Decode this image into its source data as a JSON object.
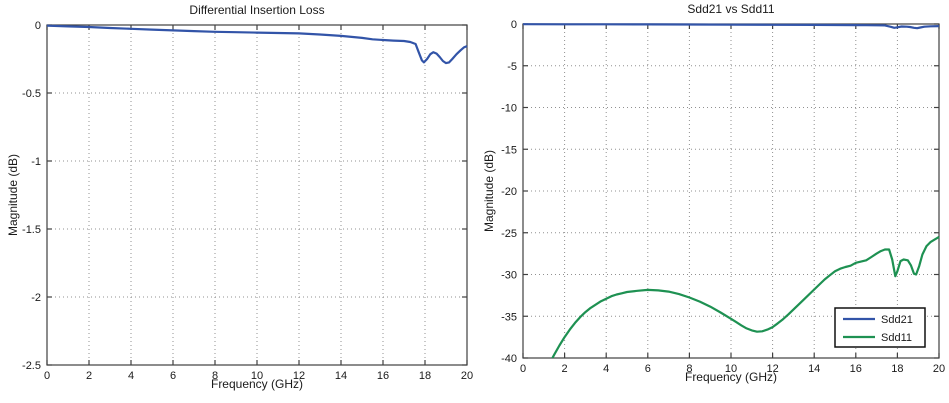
{
  "figure": {
    "background": "#ffffff",
    "axis_color": "#404040",
    "grid_color": "#909090",
    "text_color": "#1a1a1a"
  },
  "chart_data": [
    {
      "type": "line",
      "title": "Differential Insertion Loss",
      "xlabel": "Frequency (GHz)",
      "ylabel": "Magnitude (dB)",
      "xlim": [
        0,
        20
      ],
      "ylim": [
        -2.5,
        0
      ],
      "xticks": [
        0,
        2,
        4,
        6,
        8,
        10,
        12,
        14,
        16,
        18,
        20
      ],
      "yticks": [
        0,
        -0.5,
        -1,
        -1.5,
        -2,
        -2.5
      ],
      "grid": true,
      "legend": null,
      "series": [
        {
          "name": "Differential Insertion Loss",
          "color": "#3254a8",
          "x": [
            0,
            1,
            2,
            3,
            4,
            5,
            6,
            7,
            8,
            9,
            10,
            11,
            12,
            13,
            14,
            15,
            15.5,
            16,
            16.5,
            17,
            17.3,
            17.55,
            17.7,
            17.85,
            17.95,
            18.1,
            18.25,
            18.4,
            18.55,
            18.7,
            18.85,
            19.0,
            19.15,
            19.3,
            19.5,
            19.7,
            19.85,
            20
          ],
          "y": [
            -0.005,
            -0.01,
            -0.015,
            -0.022,
            -0.028,
            -0.034,
            -0.04,
            -0.045,
            -0.05,
            -0.053,
            -0.056,
            -0.059,
            -0.062,
            -0.07,
            -0.08,
            -0.095,
            -0.105,
            -0.11,
            -0.115,
            -0.118,
            -0.125,
            -0.14,
            -0.2,
            -0.26,
            -0.275,
            -0.25,
            -0.215,
            -0.2,
            -0.21,
            -0.235,
            -0.265,
            -0.28,
            -0.275,
            -0.25,
            -0.215,
            -0.185,
            -0.165,
            -0.155
          ]
        }
      ]
    },
    {
      "type": "line",
      "title": "Sdd21 vs Sdd11",
      "xlabel": "Frequency (GHz)",
      "ylabel": "Magnitude (dB)",
      "xlim": [
        0,
        20
      ],
      "ylim": [
        -40,
        0
      ],
      "xticks": [
        0,
        2,
        4,
        6,
        8,
        10,
        12,
        14,
        16,
        18,
        20
      ],
      "yticks": [
        0,
        -5,
        -10,
        -15,
        -20,
        -25,
        -30,
        -35,
        -40
      ],
      "grid": true,
      "legend": {
        "position": "lower-right-inside",
        "entries": [
          "Sdd21",
          "Sdd11"
        ]
      },
      "series": [
        {
          "name": "Sdd21",
          "color": "#3254a8",
          "x": [
            0,
            2,
            4,
            6,
            8,
            10,
            12,
            14,
            15,
            16,
            16.5,
            17,
            17.4,
            17.7,
            17.85,
            18,
            18.2,
            18.45,
            18.6,
            18.8,
            18.95,
            19.1,
            19.3,
            19.6,
            20
          ],
          "y": [
            -0.02,
            -0.03,
            -0.04,
            -0.05,
            -0.06,
            -0.08,
            -0.09,
            -0.11,
            -0.12,
            -0.13,
            -0.14,
            -0.15,
            -0.17,
            -0.35,
            -0.45,
            -0.4,
            -0.3,
            -0.32,
            -0.36,
            -0.45,
            -0.5,
            -0.42,
            -0.32,
            -0.27,
            -0.25
          ]
        },
        {
          "name": "Sdd11",
          "color": "#1e9152",
          "x": [
            1.35,
            1.5,
            1.75,
            2,
            2.25,
            2.5,
            2.75,
            3,
            3.25,
            3.5,
            3.75,
            4,
            4.25,
            4.5,
            4.75,
            5,
            5.5,
            6,
            6.5,
            7,
            7.5,
            8,
            8.5,
            9,
            9.5,
            10,
            10.25,
            10.5,
            10.75,
            11,
            11.25,
            11.5,
            11.75,
            12,
            12.25,
            12.5,
            12.75,
            13,
            13.5,
            14,
            14.25,
            14.5,
            14.75,
            15,
            15.25,
            15.5,
            15.75,
            16,
            16.25,
            16.5,
            16.75,
            17,
            17.2,
            17.4,
            17.6,
            17.75,
            17.9,
            18.0,
            18.15,
            18.3,
            18.5,
            18.65,
            18.8,
            18.9,
            19.05,
            19.2,
            19.4,
            19.6,
            19.8,
            20
          ],
          "y": [
            -40.3,
            -39.6,
            -38.5,
            -37.5,
            -36.6,
            -35.8,
            -35.1,
            -34.5,
            -34.0,
            -33.6,
            -33.2,
            -32.9,
            -32.6,
            -32.4,
            -32.25,
            -32.1,
            -31.95,
            -31.85,
            -31.9,
            -32.05,
            -32.35,
            -32.75,
            -33.25,
            -33.85,
            -34.55,
            -35.3,
            -35.7,
            -36.1,
            -36.45,
            -36.7,
            -36.85,
            -36.8,
            -36.6,
            -36.3,
            -35.85,
            -35.35,
            -34.8,
            -34.2,
            -33.0,
            -31.8,
            -31.2,
            -30.6,
            -30.1,
            -29.6,
            -29.3,
            -29.1,
            -28.95,
            -28.6,
            -28.45,
            -28.3,
            -27.9,
            -27.5,
            -27.2,
            -27.0,
            -27.0,
            -28.2,
            -30.2,
            -29.6,
            -28.4,
            -28.2,
            -28.3,
            -28.9,
            -29.9,
            -30.0,
            -29.0,
            -27.6,
            -26.6,
            -26.1,
            -25.8,
            -25.5
          ]
        }
      ]
    }
  ]
}
